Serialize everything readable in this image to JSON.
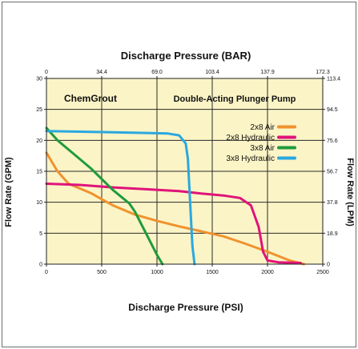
{
  "chart_data": {
    "type": "line",
    "header_left": "ChemGrout",
    "header_right": "Double-Acting Plunger Pump",
    "xlabel_bottom": "Discharge Pressure (PSI)",
    "xlabel_top": "Discharge Pressure (BAR)",
    "ylabel_left": "Flow Rate (GPM)",
    "ylabel_right": "Flow Rate (LPM)",
    "xlim": [
      0,
      2500
    ],
    "ylim": [
      0,
      30
    ],
    "x_ticks_bottom": [
      "0",
      "500",
      "1000",
      "1500",
      "2000",
      "2500"
    ],
    "x_ticks_top": [
      "0",
      "34.4",
      "69.0",
      "103.4",
      "137.9",
      "172.3"
    ],
    "y_ticks_left": [
      "0",
      "5",
      "10",
      "15",
      "20",
      "25",
      "30"
    ],
    "y_ticks_right": [
      "0",
      "18.9",
      "37.8",
      "56.7",
      "75.6",
      "94.5",
      "113.4"
    ],
    "grid": true,
    "legend_position": "top-right",
    "colors": {
      "plot_background": "#fbf4c6",
      "grid": "#2a2a2a"
    },
    "series": [
      {
        "name": "2x8 Air",
        "color": "#f0922e",
        "points": [
          [
            0,
            18
          ],
          [
            100,
            15
          ],
          [
            200,
            13
          ],
          [
            400,
            11.5
          ],
          [
            600,
            9.5
          ],
          [
            800,
            8
          ],
          [
            1000,
            7
          ],
          [
            1200,
            6.1
          ],
          [
            1400,
            5.3
          ],
          [
            1600,
            4.5
          ],
          [
            1800,
            3.3
          ],
          [
            2000,
            2
          ],
          [
            2200,
            0.6
          ],
          [
            2330,
            0
          ]
        ]
      },
      {
        "name": "2x8 Hydraulic",
        "color": "#e0137a",
        "points": [
          [
            0,
            13
          ],
          [
            300,
            12.8
          ],
          [
            600,
            12.4
          ],
          [
            900,
            12.1
          ],
          [
            1200,
            11.8
          ],
          [
            1400,
            11.4
          ],
          [
            1600,
            11.1
          ],
          [
            1750,
            10.7
          ],
          [
            1850,
            9.5
          ],
          [
            1920,
            6
          ],
          [
            1960,
            2
          ],
          [
            2000,
            0.6
          ],
          [
            2100,
            0.3
          ],
          [
            2300,
            0.2
          ]
        ]
      },
      {
        "name": "3x8 Air",
        "color": "#1f9b3c",
        "points": [
          [
            0,
            22
          ],
          [
            100,
            20
          ],
          [
            200,
            18.5
          ],
          [
            400,
            15.5
          ],
          [
            600,
            12
          ],
          [
            750,
            9.8
          ],
          [
            800,
            8.5
          ],
          [
            900,
            5
          ],
          [
            1000,
            1.5
          ],
          [
            1050,
            0
          ]
        ]
      },
      {
        "name": "3x8 Hydraulic",
        "color": "#2aa8e0",
        "points": [
          [
            0,
            21.5
          ],
          [
            300,
            21.4
          ],
          [
            600,
            21.3
          ],
          [
            900,
            21.2
          ],
          [
            1100,
            21.1
          ],
          [
            1200,
            20.8
          ],
          [
            1260,
            19.5
          ],
          [
            1280,
            17
          ],
          [
            1300,
            10
          ],
          [
            1320,
            3
          ],
          [
            1340,
            0
          ]
        ]
      }
    ]
  }
}
